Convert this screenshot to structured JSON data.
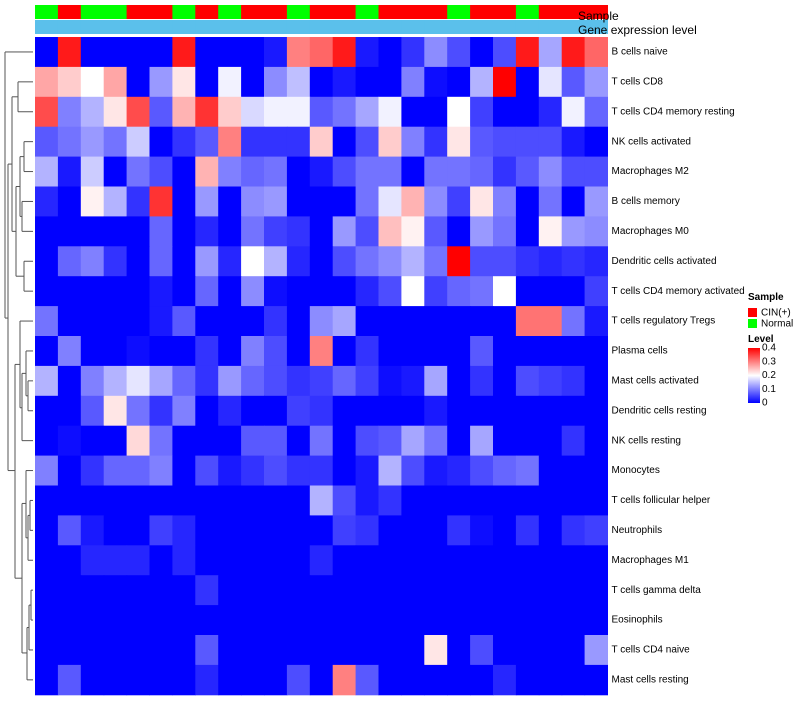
{
  "chart_data": {
    "type": "heatmap",
    "title": "",
    "annotation_tracks": [
      "Sample",
      "Gene expression level"
    ],
    "sample_groups": [
      "N",
      "C",
      "N",
      "N",
      "C",
      "C",
      "N",
      "C",
      "N",
      "C",
      "C",
      "N",
      "C",
      "C",
      "N",
      "C",
      "C",
      "C",
      "N",
      "C",
      "C",
      "N",
      "C",
      "C",
      "C"
    ],
    "gene_expression_level": "",
    "rows": [
      "B cells naive",
      "T cells CD8",
      "T cells CD4 memory resting",
      "NK cells activated",
      "Macrophages M2",
      "B cells memory",
      "Macrophages M0",
      "Dendritic cells activated",
      "T cells CD4 memory activated",
      "T cells regulatory  Tregs",
      "Plasma cells",
      "Mast cells activated",
      "Dendritic cells resting",
      "NK cells resting",
      "Monocytes",
      "T cells follicular helper",
      "Neutrophils",
      "Macrophages M1",
      "T cells gamma delta",
      "Eosinophils",
      "T cells CD4 naive",
      "Mast cells resting"
    ],
    "values": [
      [
        0.0,
        0.38,
        0.0,
        0.0,
        0.0,
        0.0,
        0.38,
        0.0,
        0.0,
        0.0,
        0.02,
        0.3,
        0.32,
        0.38,
        0.02,
        0.0,
        0.04,
        0.11,
        0.06,
        0.0,
        0.06,
        0.38,
        0.13,
        0.38,
        0.32
      ],
      [
        0.27,
        0.24,
        0.2,
        0.27,
        0.0,
        0.12,
        0.22,
        0.0,
        0.19,
        0.0,
        0.11,
        0.15,
        0.0,
        0.02,
        0.0,
        0.0,
        0.1,
        0.01,
        0.0,
        0.14,
        0.4,
        0.0,
        0.18,
        0.07,
        0.12
      ],
      [
        0.34,
        0.1,
        0.14,
        0.22,
        0.34,
        0.07,
        0.26,
        0.36,
        0.24,
        0.17,
        0.19,
        0.19,
        0.07,
        0.09,
        0.13,
        0.19,
        0.0,
        0.0,
        0.2,
        0.05,
        0.0,
        0.0,
        0.03,
        0.19,
        0.08
      ],
      [
        0.07,
        0.09,
        0.12,
        0.09,
        0.16,
        0.0,
        0.04,
        0.07,
        0.3,
        0.04,
        0.04,
        0.04,
        0.24,
        0.0,
        0.06,
        0.24,
        0.1,
        0.04,
        0.22,
        0.07,
        0.06,
        0.06,
        0.06,
        0.02,
        0.0
      ],
      [
        0.14,
        0.02,
        0.16,
        0.0,
        0.09,
        0.06,
        0.0,
        0.26,
        0.1,
        0.08,
        0.09,
        0.0,
        0.02,
        0.06,
        0.09,
        0.09,
        0.0,
        0.09,
        0.09,
        0.08,
        0.04,
        0.07,
        0.11,
        0.06,
        0.06
      ],
      [
        0.03,
        0.0,
        0.21,
        0.14,
        0.04,
        0.36,
        0.0,
        0.12,
        0.0,
        0.11,
        0.12,
        0.0,
        0.0,
        0.0,
        0.09,
        0.18,
        0.26,
        0.11,
        0.05,
        0.22,
        0.1,
        0.0,
        0.09,
        0.0,
        0.12
      ],
      [
        0.0,
        0.0,
        0.0,
        0.0,
        0.0,
        0.08,
        0.0,
        0.03,
        0.0,
        0.09,
        0.05,
        0.04,
        0.0,
        0.12,
        0.06,
        0.25,
        0.21,
        0.07,
        0.0,
        0.12,
        0.09,
        0.0,
        0.21,
        0.12,
        0.11
      ],
      [
        0.0,
        0.08,
        0.1,
        0.04,
        0.0,
        0.08,
        0.0,
        0.12,
        0.03,
        0.2,
        0.14,
        0.03,
        0.0,
        0.06,
        0.09,
        0.11,
        0.14,
        0.09,
        0.4,
        0.06,
        0.06,
        0.04,
        0.03,
        0.04,
        0.03
      ],
      [
        0.0,
        0.0,
        0.0,
        0.0,
        0.0,
        0.02,
        0.0,
        0.08,
        0.0,
        0.11,
        0.01,
        0.0,
        0.0,
        0.0,
        0.03,
        0.06,
        0.2,
        0.05,
        0.08,
        0.09,
        0.2,
        0.0,
        0.0,
        0.0,
        0.05
      ],
      [
        0.09,
        0.0,
        0.0,
        0.0,
        0.0,
        0.02,
        0.07,
        0.0,
        0.0,
        0.0,
        0.04,
        0.0,
        0.11,
        0.13,
        0.0,
        0.0,
        0.0,
        0.0,
        0.0,
        0.0,
        0.0,
        0.31,
        0.31,
        0.09,
        0.02
      ],
      [
        0.0,
        0.1,
        0.0,
        0.0,
        0.01,
        0.0,
        0.0,
        0.04,
        0.0,
        0.1,
        0.06,
        0.0,
        0.3,
        0.0,
        0.04,
        0.0,
        0.0,
        0.0,
        0.0,
        0.07,
        0.0,
        0.0,
        0.0,
        0.0,
        0.0
      ],
      [
        0.14,
        0.0,
        0.1,
        0.14,
        0.18,
        0.13,
        0.08,
        0.04,
        0.12,
        0.08,
        0.06,
        0.04,
        0.05,
        0.08,
        0.05,
        0.01,
        0.02,
        0.13,
        0.0,
        0.04,
        0.0,
        0.06,
        0.05,
        0.04,
        0.0
      ],
      [
        0.0,
        0.0,
        0.07,
        0.22,
        0.09,
        0.04,
        0.1,
        0.0,
        0.03,
        0.0,
        0.0,
        0.05,
        0.04,
        0.0,
        0.0,
        0.0,
        0.0,
        0.02,
        0.0,
        0.0,
        0.0,
        0.0,
        0.0,
        0.0,
        0.0
      ],
      [
        0.0,
        0.01,
        0.0,
        0.0,
        0.23,
        0.09,
        0.0,
        0.0,
        0.0,
        0.07,
        0.07,
        0.0,
        0.09,
        0.0,
        0.06,
        0.07,
        0.13,
        0.09,
        0.0,
        0.13,
        0.0,
        0.0,
        0.0,
        0.04,
        0.0
      ],
      [
        0.1,
        0.0,
        0.04,
        0.08,
        0.08,
        0.1,
        0.0,
        0.06,
        0.02,
        0.04,
        0.06,
        0.04,
        0.04,
        0.0,
        0.02,
        0.14,
        0.06,
        0.02,
        0.03,
        0.06,
        0.08,
        0.09,
        0.0,
        0.0,
        0.0
      ],
      [
        0.0,
        0.0,
        0.0,
        0.0,
        0.0,
        0.0,
        0.0,
        0.0,
        0.0,
        0.0,
        0.0,
        0.0,
        0.14,
        0.06,
        0.02,
        0.04,
        0.0,
        0.0,
        0.0,
        0.0,
        0.0,
        0.0,
        0.0,
        0.0,
        0.0
      ],
      [
        0.0,
        0.07,
        0.02,
        0.0,
        0.0,
        0.05,
        0.03,
        0.0,
        0.0,
        0.0,
        0.0,
        0.0,
        0.0,
        0.05,
        0.04,
        0.0,
        0.0,
        0.0,
        0.04,
        0.01,
        0.0,
        0.04,
        0.0,
        0.04,
        0.05
      ],
      [
        0.0,
        0.0,
        0.03,
        0.03,
        0.03,
        0.0,
        0.03,
        0.0,
        0.0,
        0.0,
        0.0,
        0.0,
        0.03,
        0.0,
        0.0,
        0.0,
        0.0,
        0.0,
        0.0,
        0.0,
        0.0,
        0.0,
        0.0,
        0.0,
        0.0
      ],
      [
        0.0,
        0.0,
        0.0,
        0.0,
        0.0,
        0.0,
        0.0,
        0.04,
        0.0,
        0.0,
        0.0,
        0.0,
        0.0,
        0.0,
        0.0,
        0.0,
        0.0,
        0.0,
        0.0,
        0.0,
        0.0,
        0.0,
        0.0,
        0.0,
        0.0
      ],
      [
        0.0,
        0.0,
        0.0,
        0.0,
        0.0,
        0.0,
        0.0,
        0.0,
        0.0,
        0.0,
        0.0,
        0.0,
        0.0,
        0.0,
        0.0,
        0.0,
        0.0,
        0.0,
        0.0,
        0.0,
        0.0,
        0.0,
        0.0,
        0.0,
        0.0
      ],
      [
        0.0,
        0.0,
        0.0,
        0.0,
        0.0,
        0.0,
        0.0,
        0.07,
        0.0,
        0.0,
        0.0,
        0.0,
        0.0,
        0.0,
        0.0,
        0.0,
        0.0,
        0.22,
        0.0,
        0.06,
        0.0,
        0.0,
        0.0,
        0.0,
        0.12
      ],
      [
        0.0,
        0.07,
        0.0,
        0.0,
        0.0,
        0.0,
        0.0,
        0.03,
        0.0,
        0.0,
        0.0,
        0.06,
        0.0,
        0.3,
        0.07,
        0.0,
        0.0,
        0.0,
        0.0,
        0.0,
        0.03,
        0.0,
        0.0,
        0.0,
        0.0
      ]
    ],
    "color_scale": {
      "min": 0,
      "max": 0.4,
      "stops": [
        {
          "value": 0,
          "color": "#0000ff"
        },
        {
          "value": 0.2,
          "color": "#ffffff"
        },
        {
          "value": 0.4,
          "color": "#ff0000"
        }
      ]
    },
    "legend": {
      "sample_title": "Sample",
      "sample_entries": [
        {
          "key": "C",
          "label": "CIN(+)",
          "color": "#ff0000"
        },
        {
          "key": "N",
          "label": "Normal",
          "color": "#00ff00"
        }
      ],
      "level_title": "Level",
      "level_ticks": [
        "0.4",
        "0.3",
        "0.2",
        "0.1",
        "0"
      ],
      "level_tick_values": [
        0.4,
        0.3,
        0.2,
        0.1,
        0
      ],
      "placement": "right"
    },
    "gene_expression_color": "#5bc0eb",
    "row_dendrogram": true,
    "column_dendrogram": false
  }
}
